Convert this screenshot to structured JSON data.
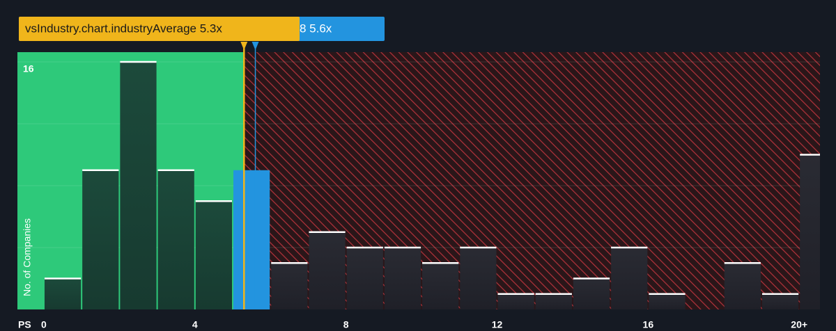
{
  "chart_data": {
    "type": "histogram",
    "bins": [
      0,
      1,
      2,
      3,
      4,
      5,
      6,
      7,
      8,
      9,
      10,
      11,
      12,
      13,
      14,
      15,
      16,
      17,
      18,
      19,
      20,
      21
    ],
    "values": [
      2,
      9,
      16,
      9,
      7,
      9,
      3,
      5,
      4,
      4,
      3,
      4,
      1,
      1,
      2,
      4,
      1,
      0,
      3,
      1,
      10
    ],
    "xlim": [
      -0.7,
      20.55
    ],
    "ylim": [
      0,
      16.2
    ],
    "xticks": [
      0,
      4,
      8,
      12,
      16,
      {
        "value": 20,
        "label": "20+"
      }
    ],
    "yticks": [
      16
    ],
    "grid_values": [
      4,
      8,
      12
    ],
    "xlabel": "PS",
    "ylabel": "No. of Companies",
    "annotations": [
      {
        "label": "vsIndustry.chart.industryAverage 5.3x",
        "value": 5.3,
        "color": "#f0b51b"
      },
      {
        "label": "8 5.6x",
        "value": 5.6,
        "color": "#2394df"
      }
    ]
  }
}
